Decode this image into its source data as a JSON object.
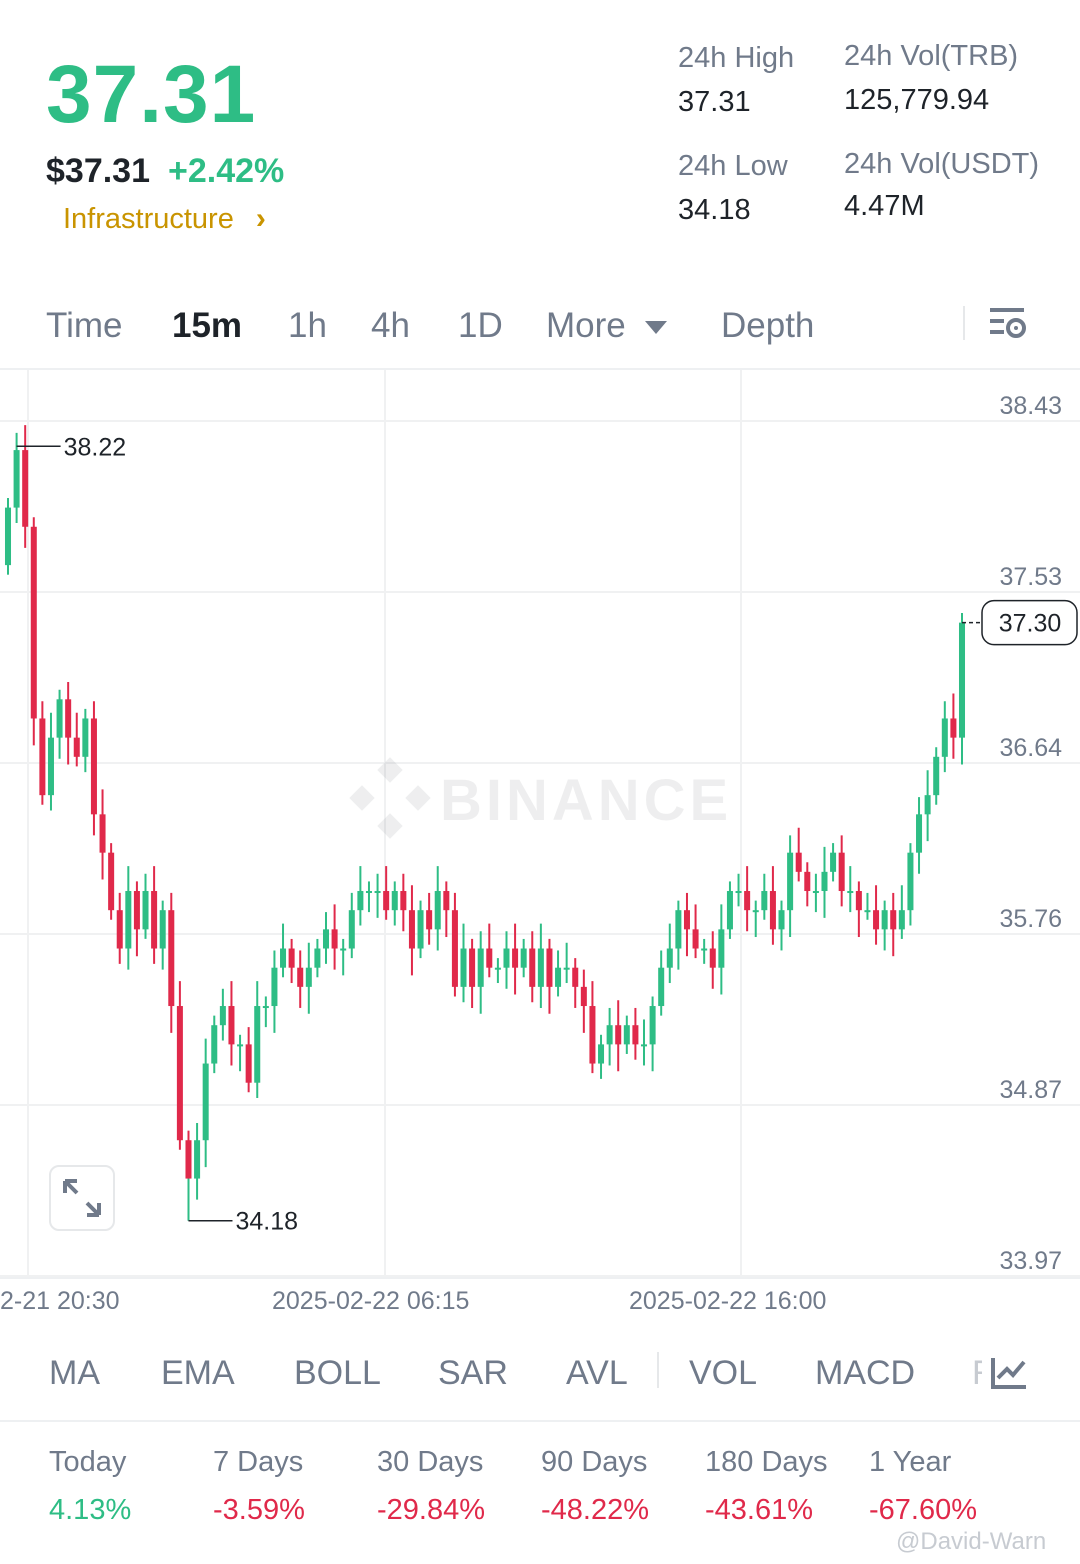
{
  "ticker": {
    "last_price": "37.31",
    "usd_price": "$37.31",
    "change_pct": "+2.42%",
    "category": "Infrastructure",
    "category_chevron": "›"
  },
  "stats": {
    "high_label": "24h High",
    "high_value": "37.31",
    "low_label": "24h Low",
    "low_value": "34.18",
    "vol_trb_label": "24h Vol(TRB)",
    "vol_trb_value": "125,779.94",
    "vol_usdt_label": "24h Vol(USDT)",
    "vol_usdt_value": "4.47M"
  },
  "tabs": [
    "Time",
    "15m",
    "1h",
    "4h",
    "1D",
    "More",
    "Depth"
  ],
  "active_tab": "15m",
  "watermark": "BINANCE",
  "chart_data": {
    "type": "candlestick",
    "y_ticks": [
      "38.43",
      "37.53",
      "36.64",
      "35.76",
      "34.87",
      "33.97"
    ],
    "ylim": [
      33.97,
      38.43
    ],
    "x_ticks": [
      "2-21 20:30",
      "2025-02-22 06:15",
      "2025-02-22 16:00"
    ],
    "high_marker": "38.22",
    "low_marker": "34.18",
    "current_price": "37.30",
    "close_series": [
      37.9,
      38.2,
      37.8,
      36.8,
      36.4,
      36.7,
      36.9,
      36.7,
      36.6,
      36.8,
      36.3,
      36.1,
      35.8,
      35.6,
      35.9,
      35.7,
      35.9,
      35.6,
      35.8,
      35.3,
      34.6,
      34.4,
      34.6,
      35.0,
      35.2,
      35.3,
      35.1,
      35.1,
      34.9,
      35.3,
      35.3,
      35.5,
      35.6,
      35.5,
      35.4,
      35.5,
      35.6,
      35.7,
      35.6,
      35.6,
      35.8,
      35.9,
      35.9,
      35.9,
      35.8,
      35.9,
      35.8,
      35.6,
      35.8,
      35.7,
      35.9,
      35.8,
      35.4,
      35.6,
      35.4,
      35.6,
      35.5,
      35.5,
      35.6,
      35.5,
      35.6,
      35.4,
      35.6,
      35.4,
      35.5,
      35.5,
      35.4,
      35.3,
      35.0,
      35.1,
      35.2,
      35.1,
      35.2,
      35.1,
      35.1,
      35.3,
      35.5,
      35.6,
      35.8,
      35.7,
      35.6,
      35.6,
      35.5,
      35.7,
      35.9,
      35.9,
      35.8,
      35.8,
      35.9,
      35.7,
      35.8,
      36.1,
      36.0,
      35.9,
      35.9,
      36.0,
      36.1,
      35.9,
      35.9,
      35.8,
      35.8,
      35.7,
      35.8,
      35.7,
      35.8,
      36.1,
      36.3,
      36.4,
      36.6,
      36.8,
      36.7,
      37.3
    ]
  },
  "indicators": [
    "MA",
    "EMA",
    "BOLL",
    "SAR",
    "AVL",
    "VOL",
    "MACD",
    "R"
  ],
  "performance": [
    {
      "label": "Today",
      "value": "4.13%",
      "up": true
    },
    {
      "label": "7 Days",
      "value": "-3.59%",
      "up": false
    },
    {
      "label": "30 Days",
      "value": "-29.84%",
      "up": false
    },
    {
      "label": "90 Days",
      "value": "-48.22%",
      "up": false
    },
    {
      "label": "180 Days",
      "value": "-43.61%",
      "up": false
    },
    {
      "label": "1 Year",
      "value": "-67.60%",
      "up": false
    }
  ],
  "credit": "@David-Warn",
  "colors": {
    "up": "#2ebd85",
    "down": "#e0294a",
    "accent": "#c99400",
    "muted": "#707a8a"
  },
  "icons": [
    "chevron-right-icon",
    "caret-down-icon",
    "chart-settings-icon",
    "binance-logo-icon",
    "expand-icon",
    "indicator-settings-icon"
  ]
}
